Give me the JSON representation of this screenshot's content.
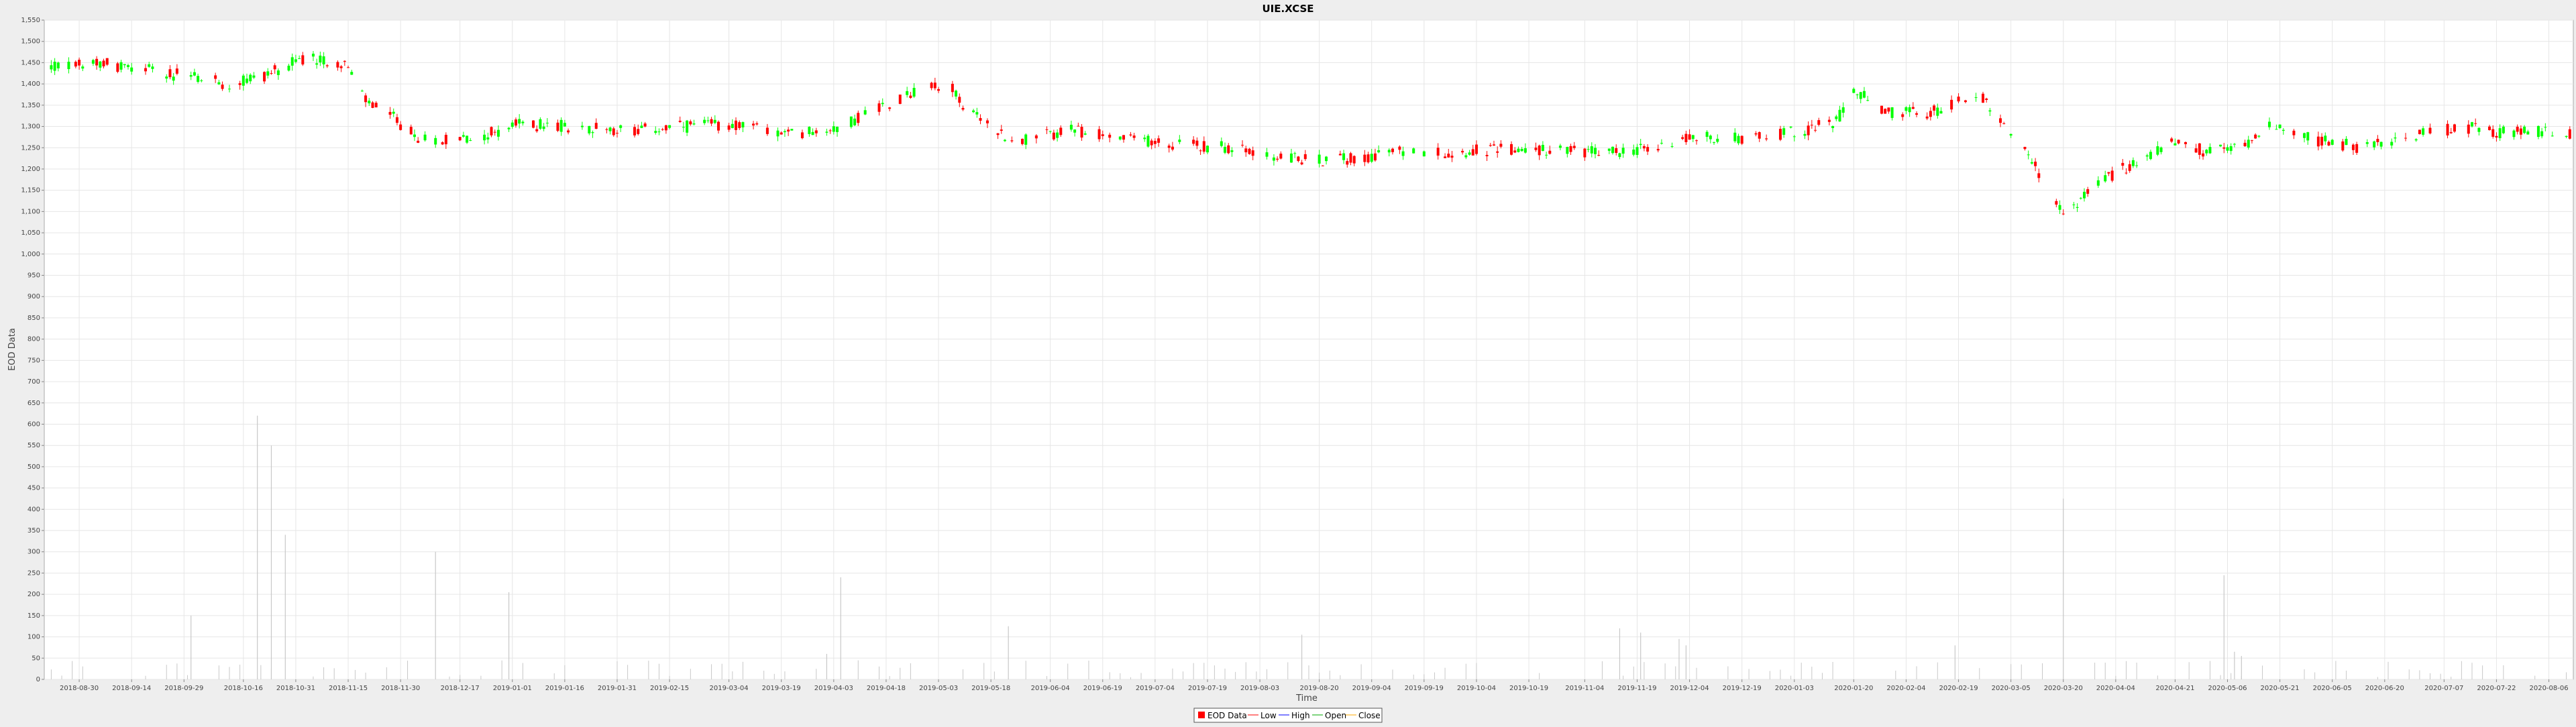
{
  "chart_data": {
    "type": "candlestick",
    "title": "UIE.XCSE",
    "xlabel": "Time",
    "ylabel": "EOD Data",
    "ylim": [
      0,
      1550
    ],
    "yticks": [
      0,
      50,
      100,
      150,
      200,
      250,
      300,
      350,
      400,
      450,
      500,
      550,
      600,
      650,
      700,
      750,
      800,
      850,
      900,
      950,
      1000,
      1050,
      1100,
      1150,
      1200,
      1250,
      1300,
      1350,
      1400,
      1450,
      1500,
      1550
    ],
    "ytick_labels": [
      "0",
      "50",
      "100",
      "150",
      "200",
      "250",
      "300",
      "350",
      "400",
      "450",
      "500",
      "550",
      "600",
      "650",
      "700",
      "750",
      "800",
      "850",
      "900",
      "950",
      "1,000",
      "1,050",
      "1,100",
      "1,150",
      "1,200",
      "1,250",
      "1,300",
      "1,350",
      "1,400",
      "1,450",
      "1,500",
      "1,550"
    ],
    "x_range": [
      "2018-08-20",
      "2020-08-13"
    ],
    "xticks": [
      "2018-08-30",
      "2018-09-14",
      "2018-09-29",
      "2018-10-16",
      "2018-10-31",
      "2018-11-15",
      "2018-11-30",
      "2018-12-17",
      "2019-01-01",
      "2019-01-16",
      "2019-01-31",
      "2019-02-15",
      "2019-03-04",
      "2019-03-19",
      "2019-04-03",
      "2019-04-18",
      "2019-05-03",
      "2019-05-18",
      "2019-06-04",
      "2019-06-19",
      "2019-07-04",
      "2019-07-19",
      "2019-08-03",
      "2019-08-20",
      "2019-09-04",
      "2019-09-19",
      "2019-10-04",
      "2019-10-19",
      "2019-11-04",
      "2019-11-19",
      "2019-12-04",
      "2019-12-19",
      "2020-01-03",
      "2020-01-20",
      "2020-02-04",
      "2020-02-19",
      "2020-03-05",
      "2020-03-20",
      "2020-04-04",
      "2020-04-21",
      "2020-05-06",
      "2020-05-21",
      "2020-06-05",
      "2020-06-20",
      "2020-07-07",
      "2020-07-22",
      "2020-08-06"
    ],
    "close_path": [
      [
        "2018-08-22",
        1440
      ],
      [
        "2018-09-05",
        1450
      ],
      [
        "2018-09-20",
        1430
      ],
      [
        "2018-10-02",
        1415
      ],
      [
        "2018-10-12",
        1400
      ],
      [
        "2018-10-22",
        1420
      ],
      [
        "2018-11-02",
        1460
      ],
      [
        "2018-11-14",
        1450
      ],
      [
        "2018-11-20",
        1360
      ],
      [
        "2018-11-28",
        1320
      ],
      [
        "2018-12-05",
        1270
      ],
      [
        "2018-12-20",
        1270
      ],
      [
        "2019-01-03",
        1305
      ],
      [
        "2019-01-20",
        1300
      ],
      [
        "2019-02-05",
        1290
      ],
      [
        "2019-02-20",
        1300
      ],
      [
        "2019-03-05",
        1305
      ],
      [
        "2019-03-20",
        1280
      ],
      [
        "2019-04-05",
        1300
      ],
      [
        "2019-04-15",
        1340
      ],
      [
        "2019-04-25",
        1380
      ],
      [
        "2019-05-06",
        1400
      ],
      [
        "2019-05-12",
        1330
      ],
      [
        "2019-05-25",
        1265
      ],
      [
        "2019-06-10",
        1290
      ],
      [
        "2019-06-25",
        1270
      ],
      [
        "2019-07-10",
        1260
      ],
      [
        "2019-07-25",
        1250
      ],
      [
        "2019-08-05",
        1230
      ],
      [
        "2019-08-20",
        1220
      ],
      [
        "2019-08-30",
        1225
      ],
      [
        "2019-09-10",
        1240
      ],
      [
        "2019-09-25",
        1240
      ],
      [
        "2019-10-10",
        1245
      ],
      [
        "2019-10-25",
        1245
      ],
      [
        "2019-11-10",
        1240
      ],
      [
        "2019-11-25",
        1250
      ],
      [
        "2019-12-05",
        1275
      ],
      [
        "2019-12-20",
        1270
      ],
      [
        "2020-01-05",
        1290
      ],
      [
        "2020-01-15",
        1310
      ],
      [
        "2020-01-20",
        1390
      ],
      [
        "2020-01-28",
        1335
      ],
      [
        "2020-02-10",
        1330
      ],
      [
        "2020-02-20",
        1360
      ],
      [
        "2020-02-26",
        1370
      ],
      [
        "2020-03-02",
        1315
      ],
      [
        "2020-03-10",
        1240
      ],
      [
        "2020-03-15",
        1150
      ],
      [
        "2020-03-20",
        1090
      ],
      [
        "2020-03-25",
        1130
      ],
      [
        "2020-04-02",
        1180
      ],
      [
        "2020-04-10",
        1220
      ],
      [
        "2020-04-20",
        1260
      ],
      [
        "2020-05-01",
        1240
      ],
      [
        "2020-05-10",
        1250
      ],
      [
        "2020-05-18",
        1310
      ],
      [
        "2020-05-25",
        1280
      ],
      [
        "2020-06-05",
        1260
      ],
      [
        "2020-06-15",
        1250
      ],
      [
        "2020-06-25",
        1270
      ],
      [
        "2020-07-05",
        1290
      ],
      [
        "2020-07-15",
        1295
      ],
      [
        "2020-07-25",
        1285
      ],
      [
        "2020-08-05",
        1290
      ],
      [
        "2020-08-12",
        1285
      ]
    ],
    "volume_spikes": [
      [
        "2018-10-01",
        150
      ],
      [
        "2018-10-20",
        620
      ],
      [
        "2018-10-24",
        550
      ],
      [
        "2018-10-28",
        340
      ],
      [
        "2018-12-10",
        300
      ],
      [
        "2018-12-31",
        205
      ],
      [
        "2019-04-01",
        60
      ],
      [
        "2019-04-05",
        240
      ],
      [
        "2019-05-23",
        125
      ],
      [
        "2019-08-15",
        105
      ],
      [
        "2019-11-14",
        120
      ],
      [
        "2019-11-20",
        110
      ],
      [
        "2019-12-01",
        95
      ],
      [
        "2019-12-03",
        80
      ],
      [
        "2020-02-18",
        80
      ],
      [
        "2020-03-20",
        425
      ],
      [
        "2020-05-05",
        245
      ],
      [
        "2020-05-08",
        65
      ],
      [
        "2020-05-10",
        55
      ]
    ],
    "legend_position": "bottom-center",
    "legend": [
      "EOD Data",
      "Low",
      "High",
      "Open",
      "Close"
    ],
    "colors": {
      "up": "#00ff00",
      "down": "#ff0000",
      "volume": "#c8c8c8",
      "grid": "#e6e6e6",
      "plot_bg": "#ffffff",
      "page_bg": "#eeeeee"
    },
    "grid": true
  }
}
